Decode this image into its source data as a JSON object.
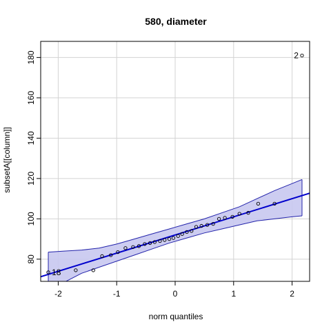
{
  "chart_data": {
    "type": "scatter",
    "subtype": "qq-plot",
    "title": "580, diameter",
    "xlabel": "norm quantiles",
    "ylabel": "subsetA[[column]]",
    "xlim": [
      -2.3,
      2.3
    ],
    "ylim": [
      69,
      188
    ],
    "xticks": [
      -2,
      -1,
      0,
      1,
      2
    ],
    "yticks": [
      80,
      100,
      120,
      140,
      160,
      180
    ],
    "grid": true,
    "colors": {
      "line": "#0000CC",
      "band_fill": "#C8C8F0",
      "band_edge": "#2222AA",
      "grid": "#D3D3D3",
      "points": "#000000"
    },
    "reference_line": {
      "intercept": 92.0,
      "slope": 9.0
    },
    "band": {
      "x": [
        -2.17,
        -1.9,
        -1.6,
        -1.3,
        -1.0,
        -0.7,
        -0.4,
        -0.1,
        0.2,
        0.5,
        0.8,
        1.1,
        1.4,
        1.7,
        2.0,
        2.17
      ],
      "lower": [
        62.5,
        68.5,
        73.0,
        76.0,
        79.0,
        82.0,
        85.0,
        88.0,
        90.5,
        93.0,
        95.0,
        97.0,
        99.0,
        100.0,
        101.0,
        101.5
      ],
      "upper": [
        83.5,
        84.0,
        84.5,
        85.5,
        87.5,
        90.0,
        92.5,
        95.0,
        97.5,
        100.0,
        103.0,
        106.0,
        110.0,
        114.0,
        117.5,
        119.5
      ]
    },
    "points": [
      {
        "x": -2.17,
        "y": 73.5,
        "label": "18"
      },
      {
        "x": -1.7,
        "y": 74.5
      },
      {
        "x": -1.4,
        "y": 74.5
      },
      {
        "x": -1.25,
        "y": 81.5
      },
      {
        "x": -1.1,
        "y": 82.0
      },
      {
        "x": -0.98,
        "y": 83.5
      },
      {
        "x": -0.85,
        "y": 85.5
      },
      {
        "x": -0.72,
        "y": 86.0
      },
      {
        "x": -0.62,
        "y": 86.5
      },
      {
        "x": -0.52,
        "y": 87.5
      },
      {
        "x": -0.43,
        "y": 88.0
      },
      {
        "x": -0.35,
        "y": 88.5
      },
      {
        "x": -0.26,
        "y": 89.0
      },
      {
        "x": -0.18,
        "y": 89.5
      },
      {
        "x": -0.1,
        "y": 90.0
      },
      {
        "x": -0.03,
        "y": 90.5
      },
      {
        "x": 0.05,
        "y": 91.5
      },
      {
        "x": 0.12,
        "y": 92.5
      },
      {
        "x": 0.2,
        "y": 93.5
      },
      {
        "x": 0.28,
        "y": 94.0
      },
      {
        "x": 0.36,
        "y": 96.0
      },
      {
        "x": 0.45,
        "y": 96.5
      },
      {
        "x": 0.55,
        "y": 97.0
      },
      {
        "x": 0.65,
        "y": 97.5
      },
      {
        "x": 0.75,
        "y": 100.0
      },
      {
        "x": 0.85,
        "y": 100.5
      },
      {
        "x": 0.98,
        "y": 101.0
      },
      {
        "x": 1.1,
        "y": 102.5
      },
      {
        "x": 1.25,
        "y": 103.0
      },
      {
        "x": 1.42,
        "y": 107.5
      },
      {
        "x": 1.7,
        "y": 107.5
      },
      {
        "x": 2.17,
        "y": 181.0,
        "label": "2"
      }
    ]
  }
}
